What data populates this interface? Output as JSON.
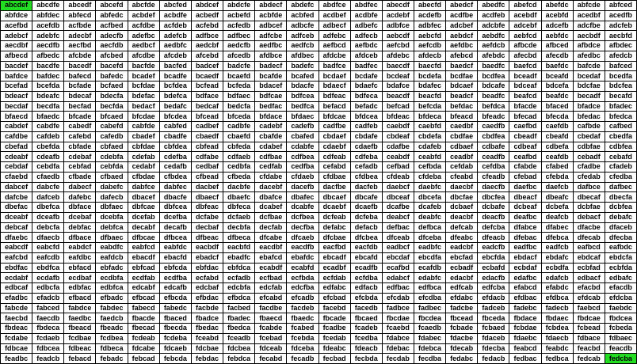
{
  "highlight_color": "#22dd22",
  "highlighted": [
    0,
    719
  ],
  "cells": [
    "abcdef",
    "abcdfe",
    "abcedf",
    "abcefd",
    "abcfde",
    "abcfed",
    "abdcef",
    "abdcfe",
    "abdecf",
    "abdefc",
    "abdfce",
    "abdfec",
    "abecdf",
    "abecfd",
    "abedcf",
    "abedfc",
    "abefcd",
    "abefdc",
    "abfcde",
    "abfced",
    "abfdce",
    "abfdec",
    "abfecd",
    "abfedc",
    "acbdef",
    "acbdfe",
    "acbedf",
    "acbefd",
    "acbfde",
    "acbfed",
    "acdbef",
    "acdbfe",
    "acdebf",
    "acdefb",
    "acdfbe",
    "acdfeb",
    "acebdf",
    "acebfd",
    "acedbf",
    "acedfb",
    "acefbd",
    "acefdb",
    "acfbde",
    "acfbed",
    "acfdbe",
    "acfdeb",
    "acfebd",
    "acfedb",
    "adbcef",
    "adbcfe",
    "adbecf",
    "adbefc",
    "adbfce",
    "adbfec",
    "adcbef",
    "adcbfe",
    "adcebf",
    "adcefb",
    "adcfbe",
    "adcfeb",
    "adebcf",
    "adebfc",
    "adecbf",
    "adecfb",
    "adefbc",
    "adefcb",
    "adfbce",
    "adfbec",
    "adfcbe",
    "adfceb",
    "adfebc",
    "adfecb",
    "aebcdf",
    "aebcfd",
    "aebdcf",
    "aebdfc",
    "aebfcd",
    "aebfdc",
    "aecbdf",
    "aecbfd",
    "aecdbf",
    "aecdfb",
    "aecfbd",
    "aecfdb",
    "aedbcf",
    "aedbfc",
    "aedcbf",
    "aedcfb",
    "aedfbc",
    "aedfcb",
    "aefbcd",
    "aefbdc",
    "aefcbd",
    "aefcdb",
    "aefdbc",
    "aefdcb",
    "afbcde",
    "afbced",
    "afbdce",
    "afbdec",
    "afbecd",
    "afbedc",
    "afcbde",
    "afcbed",
    "afcdbe",
    "afcdeb",
    "afcebd",
    "afcedb",
    "afdbce",
    "afdbec",
    "afdcbe",
    "afdceb",
    "afdebc",
    "afdecb",
    "afebcd",
    "afebdc",
    "afecbd",
    "afecdb",
    "afedbc",
    "afedcb",
    "bacdef",
    "bacdfe",
    "bacedf",
    "bacefd",
    "bacfde",
    "bacfed",
    "badcef",
    "badcfe",
    "badecf",
    "badefc",
    "badfce",
    "badfec",
    "baecdf",
    "baecfd",
    "baedcf",
    "baedfc",
    "baefcd",
    "baefdc",
    "bafcde",
    "bafced",
    "bafdce",
    "bafdec",
    "bafecd",
    "bafedc",
    "bcadef",
    "bcadfe",
    "bcaedf",
    "bcaefd",
    "bcafde",
    "bcafed",
    "bcdaef",
    "bcdafe",
    "bcdeaf",
    "bcdefa",
    "bcdfae",
    "bcdfea",
    "bceadf",
    "bceafd",
    "bcedaf",
    "bcedfa",
    "bcefad",
    "bcefda",
    "bcfade",
    "bcfaed",
    "bcfdae",
    "bcfdea",
    "bcfead",
    "bcfeda",
    "bdacef",
    "bdacfe",
    "bdaecf",
    "bdaefc",
    "bdafce",
    "bdafec",
    "bdcaef",
    "bdcafe",
    "bdceaf",
    "bdcefa",
    "bdcfae",
    "bdcfea",
    "bdeacf",
    "bdeafc",
    "bdecaf",
    "bdecfa",
    "bdefac",
    "bdefca",
    "bdface",
    "bdfaec",
    "bdfcae",
    "bdfcea",
    "bdfeac",
    "bdfeca",
    "beacdf",
    "beacfd",
    "beadcf",
    "beadfc",
    "beafcd",
    "beafdc",
    "becadf",
    "becafd",
    "becdaf",
    "becdfa",
    "becfad",
    "becfda",
    "bedacf",
    "bedafc",
    "bedcaf",
    "bedcfa",
    "bedfac",
    "bedfca",
    "befacd",
    "befadc",
    "befcad",
    "befcda",
    "befdac",
    "befdca",
    "bfacde",
    "bfaced",
    "bfadce",
    "bfadec",
    "bfaecd",
    "bfaedc",
    "bfcade",
    "bfcaed",
    "bfcdae",
    "bfcdea",
    "bfcead",
    "bfceda",
    "bfdace",
    "bfdaec",
    "bfdcae",
    "bfdcea",
    "bfdeac",
    "bfdeca",
    "bfeacd",
    "bfeadc",
    "bfecad",
    "bfecda",
    "bfedac",
    "bfedca",
    "cabdef",
    "cabdfe",
    "cabedf",
    "cabefd",
    "cabfde",
    "cabfed",
    "cadbef",
    "cadbfe",
    "cadebf",
    "cadefb",
    "cadfbe",
    "cadfeb",
    "caebdf",
    "caebfd",
    "caedbf",
    "caedfb",
    "caefbd",
    "caefdb",
    "cafbde",
    "cafbed",
    "cafdbe",
    "cafdeb",
    "cafebd",
    "cafedb",
    "cbadef",
    "cbadfe",
    "cbaedf",
    "cbaefd",
    "cbafde",
    "cbafed",
    "cbdaef",
    "cbdafe",
    "cbdeaf",
    "cbdefa",
    "cbdfae",
    "cbdfea",
    "cbeadf",
    "cbeafd",
    "cbedaf",
    "cbedfa",
    "cbefad",
    "cbefda",
    "cbfade",
    "cbfaed",
    "cbfdae",
    "cbfdea",
    "cbfead",
    "cbfeda",
    "cdabef",
    "cdabfe",
    "cdaebf",
    "cdaefb",
    "cdafbe",
    "cdafeb",
    "cdbaef",
    "cdbafe",
    "cdbeaf",
    "cdbefa",
    "cdbfae",
    "cdbfea",
    "cdeabf",
    "cdeafb",
    "cdebaf",
    "cdebfa",
    "cdefab",
    "cdefba",
    "cdfabe",
    "cdfaeb",
    "cdfbae",
    "cdfbea",
    "cdfeab",
    "cdfeba",
    "ceabdf",
    "ceabfd",
    "ceadbf",
    "ceadfb",
    "ceafbd",
    "ceafdb",
    "cebadf",
    "cebafd",
    "cebdaf",
    "cebdfa",
    "cebfad",
    "cebfda",
    "cedabf",
    "cedafb",
    "cedbaf",
    "cedbfa",
    "cedfab",
    "cedfba",
    "cefabd",
    "cefadb",
    "cefbad",
    "cefbda",
    "cefdab",
    "cefdba",
    "cfabde",
    "cfabed",
    "cfadbe",
    "cfadeb",
    "cfaebd",
    "cfaedb",
    "cfbade",
    "cfbaed",
    "cfbdae",
    "cfbdea",
    "cfbead",
    "cfbeda",
    "cfdabe",
    "cfdaeb",
    "cfdbae",
    "cfdbea",
    "cfdeab",
    "cfdeba",
    "cfeabd",
    "cfeadb",
    "cfebad",
    "cfebda",
    "cfedab",
    "cfedba",
    "dabcef",
    "dabcfe",
    "dabecf",
    "dabefc",
    "dabfce",
    "dabfec",
    "dacbef",
    "dacbfe",
    "dacebf",
    "dacefb",
    "dacfbe",
    "dacfeb",
    "daebcf",
    "daebfc",
    "daecbf",
    "daecfb",
    "daefbc",
    "daefcb",
    "dafbce",
    "dafbec",
    "dafcbe",
    "dafceb",
    "dafebc",
    "dafecb",
    "dbacef",
    "dbacfe",
    "dbaecf",
    "dbaefc",
    "dbafce",
    "dbafec",
    "dbcaef",
    "dbcafe",
    "dbceaf",
    "dbcefa",
    "dbcfae",
    "dbcfea",
    "dbeacf",
    "dbeafc",
    "dbecaf",
    "dbecfa",
    "dbefac",
    "dbefca",
    "dbface",
    "dbfaec",
    "dbfcae",
    "dbfcea",
    "dbfeac",
    "dbfeca",
    "dcabef",
    "dcabfe",
    "dcaebf",
    "dcaefb",
    "dcafbe",
    "dcafeb",
    "dcbaef",
    "dcbafe",
    "dcbeaf",
    "dcbefa",
    "dcbfae",
    "dcbfea",
    "dceabf",
    "dceafb",
    "dcebaf",
    "dcebfa",
    "dcefab",
    "dcefba",
    "dcfabe",
    "dcfaeb",
    "dcfbae",
    "dcfbea",
    "dcfeab",
    "dcfeba",
    "deabcf",
    "deabfc",
    "deacbf",
    "deacfb",
    "deafbc",
    "deafcb",
    "debacf",
    "debafc",
    "debcaf",
    "debcfa",
    "debfac",
    "debfca",
    "decabf",
    "decafb",
    "decbaf",
    "decbfa",
    "decfab",
    "decfba",
    "defabc",
    "defacb",
    "defbac",
    "defbca",
    "defcab",
    "defcba",
    "dfabce",
    "dfabec",
    "dfacbe",
    "dfaceb",
    "dfaebc",
    "dfaecb",
    "dfbace",
    "dfbaec",
    "dfbcae",
    "dfbcea",
    "dfbeac",
    "dfbeca",
    "dfcabe",
    "dfcaeb",
    "dfcbae",
    "dfcbea",
    "dfceab",
    "dfceba",
    "dfeabc",
    "dfeacb",
    "dfebac",
    "dfebca",
    "dfecab",
    "dfecba",
    "eabcdf",
    "eabcfd",
    "eabdcf",
    "eabdfc",
    "eabfcd",
    "eabfdc",
    "eacbdf",
    "eacbfd",
    "eacdbf",
    "eacdfb",
    "eacfbd",
    "eacfdb",
    "eadbcf",
    "eadbfc",
    "eadcbf",
    "eadcfb",
    "eadfbc",
    "eadfcb",
    "eafbcd",
    "eafbdc",
    "eafcbd",
    "eafcdb",
    "eafdbc",
    "eafdcb",
    "ebacdf",
    "ebacfd",
    "ebadcf",
    "ebadfc",
    "ebafcd",
    "ebafdc",
    "ebcadf",
    "ebcafd",
    "ebcdaf",
    "ebcdfa",
    "ebcfad",
    "ebcfda",
    "ebdacf",
    "ebdafc",
    "ebdcaf",
    "ebdcfa",
    "ebdfac",
    "ebdfca",
    "ebfacd",
    "ebfadc",
    "ebfcad",
    "ebfcda",
    "ebfdac",
    "ebfdca",
    "ecabdf",
    "ecabfd",
    "ecadbf",
    "ecadfb",
    "ecafbd",
    "ecafdb",
    "ecbadf",
    "ecbafd",
    "ecbdaf",
    "ecbdfa",
    "ecbfad",
    "ecbfda",
    "ecdabf",
    "ecdafb",
    "ecdbaf",
    "ecdbfa",
    "ecdfab",
    "ecdfba",
    "ecfabd",
    "ecfadb",
    "ecfbad",
    "ecfbda",
    "ecfdab",
    "ecfdba",
    "edabcf",
    "edabfc",
    "edacbf",
    "edacfb",
    "edafbc",
    "edafcb",
    "edbacf",
    "edbafc",
    "edbcaf",
    "edbcfa",
    "edbfac",
    "edbfca",
    "edcabf",
    "edcafb",
    "edcbaf",
    "edcbfa",
    "edcfab",
    "edcfba",
    "edfabc",
    "edfacb",
    "edfbac",
    "edfbca",
    "edfcab",
    "edfcba",
    "efabcd",
    "efabdc",
    "efacbd",
    "efacdb",
    "efadbc",
    "efadcb",
    "efbacd",
    "efbadc",
    "efbcad",
    "efbcda",
    "efbdac",
    "efbdca",
    "efcabd",
    "efcadb",
    "efcbad",
    "efcbda",
    "efcdab",
    "efcdba",
    "efdabc",
    "efdacb",
    "efdbac",
    "efdbca",
    "efdcab",
    "efdcba",
    "fabcde",
    "fabced",
    "fabdce",
    "fabdec",
    "fabecd",
    "fabedc",
    "facbde",
    "facbed",
    "facdbe",
    "facdeb",
    "facebd",
    "facedb",
    "fadbce",
    "fadbec",
    "fadcbe",
    "fadceb",
    "fadebc",
    "fadecb",
    "faebcd",
    "faebdc",
    "faecbd",
    "faecdb",
    "faedbc",
    "faedcb",
    "fbacde",
    "fbaced",
    "fbadce",
    "fbadec",
    "fbaecd",
    "fbaedc",
    "fbcade",
    "fbcaed",
    "fbcdae",
    "fbcdea",
    "fbcead",
    "fbceda",
    "fbdace",
    "fbdaec",
    "fbdcae",
    "fbdcea",
    "fbdeac",
    "fbdeca",
    "fbeacd",
    "fbeadc",
    "fbecad",
    "fbecda",
    "fbedac",
    "fbedca",
    "fcabde",
    "fcabed",
    "fcadbe",
    "fcadeb",
    "fcaebd",
    "fcaedb",
    "fcbade",
    "fcbaed",
    "fcbdae",
    "fcbdea",
    "fcbead",
    "fcbeda",
    "fcdabe",
    "fcdaeb",
    "fcdbae",
    "fcdbea",
    "fcdeab",
    "fcdeba",
    "fceabd",
    "fceadb",
    "fcebad",
    "fcebda",
    "fcedab",
    "fcedba",
    "fdabce",
    "fdabec",
    "fdacbe",
    "fdaceb",
    "fdaebc",
    "fdaecb",
    "fdbace",
    "fdbaec",
    "fdbcae",
    "fdbcea",
    "fdbeac",
    "fdbeca",
    "fdcabe",
    "fdcaeb",
    "fdcbae",
    "fdcbea",
    "fdceab",
    "fdceba",
    "fdeabc",
    "fdeacb",
    "fdebac",
    "fdebca",
    "fdecab",
    "fdecba",
    "feabcd",
    "feabdc",
    "feacbd",
    "feacdb",
    "feadbc",
    "feadcb",
    "febacd",
    "febadc",
    "febcad",
    "febcda",
    "febdac",
    "febdca",
    "fecabd",
    "fecadb",
    "fecbad",
    "fecbda",
    "fecdab",
    "fecdba",
    "fedabc",
    "fedacb",
    "fedbac",
    "fedbca",
    "fedcab",
    "fedcba"
  ]
}
